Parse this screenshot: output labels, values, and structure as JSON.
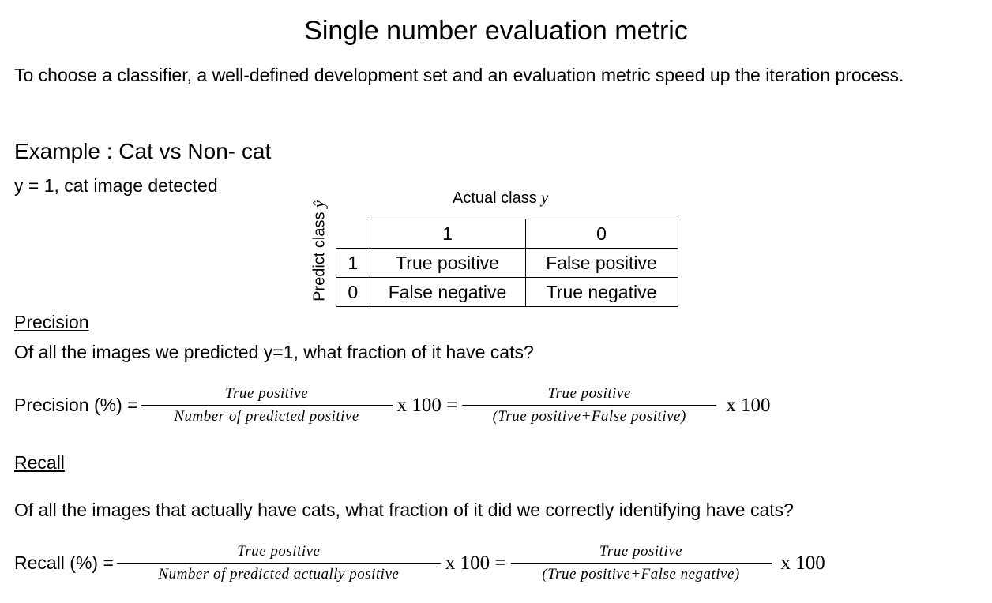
{
  "title": "Single number evaluation metric",
  "intro": "To choose a classifier, a well-defined development set and an evaluation metric speed up the iteration process.",
  "example": {
    "heading": "Example : Cat vs Non- cat",
    "note": "y = 1, cat image detected"
  },
  "table": {
    "column_header": {
      "label": "Actual class",
      "symbol": "y"
    },
    "row_header": {
      "label": "Predict class",
      "symbol": "ŷ"
    },
    "columns": [
      "1",
      "0"
    ],
    "rows": [
      [
        "1",
        "True positive",
        "False positive"
      ],
      [
        "0",
        "False negative",
        "True negative"
      ]
    ]
  },
  "precision": {
    "heading": "Precision",
    "question": "Of all the images we predicted y=1, what fraction of it have cats?",
    "formula": {
      "label": "Precision (%) =",
      "numerator_1": "True positive",
      "denominator_1": "Number of predicted positive",
      "multiplier_1": "x 100 =",
      "numerator_2": "True positive",
      "denominator_2": "(True positive+False positive)",
      "multiplier_2": "x 100"
    }
  },
  "recall": {
    "heading": "Recall",
    "question": "Of all the images that actually have cats, what fraction of it did we correctly identifying have cats?",
    "formula": {
      "label": "Recall (%) =",
      "numerator_1": "True positive",
      "denominator_1": "Number of predicted actually positive",
      "multiplier_1": "x 100 =",
      "numerator_2": "True positive",
      "denominator_2": "(True positive+False negative)",
      "multiplier_2": "x 100"
    }
  }
}
